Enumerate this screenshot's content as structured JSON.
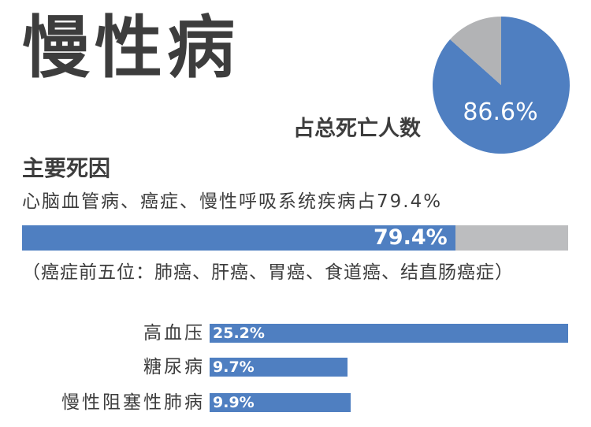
{
  "title": "慢性病",
  "pie": {
    "value_label": "86.6%",
    "caption": "占总死亡人数",
    "colors": {
      "main": "#4f7fc1",
      "rest": "#b2b3b5"
    }
  },
  "section_title": "主要死因",
  "main_line": "心脑血管病、癌症、慢性呼吸系统疾病占79.4%",
  "main_bar": {
    "label": "79.4%",
    "colors": {
      "fill": "#4f7fc1",
      "track": "#bcbdbf"
    }
  },
  "cancer_note": "（癌症前五位：肺癌、肝癌、胃癌、食道癌、结直肠癌症）",
  "chart_data": [
    {
      "type": "pie",
      "values": [
        86.6,
        13.4
      ],
      "labels": [
        "86.6%",
        ""
      ],
      "title": "",
      "caption": "占总死亡人数"
    },
    {
      "type": "bar",
      "orientation": "horizontal",
      "categories": [
        ""
      ],
      "values": [
        79.4
      ],
      "labels": [
        "79.4%"
      ],
      "xlim": [
        0,
        100
      ]
    },
    {
      "type": "bar",
      "orientation": "horizontal",
      "categories": [
        "高血压",
        "糖尿病",
        "慢性阻塞性肺病"
      ],
      "values": [
        25.2,
        9.7,
        9.9
      ],
      "labels": [
        "25.2%",
        "9.7%",
        "9.9%"
      ],
      "xlim": [
        0,
        25.2
      ]
    }
  ]
}
